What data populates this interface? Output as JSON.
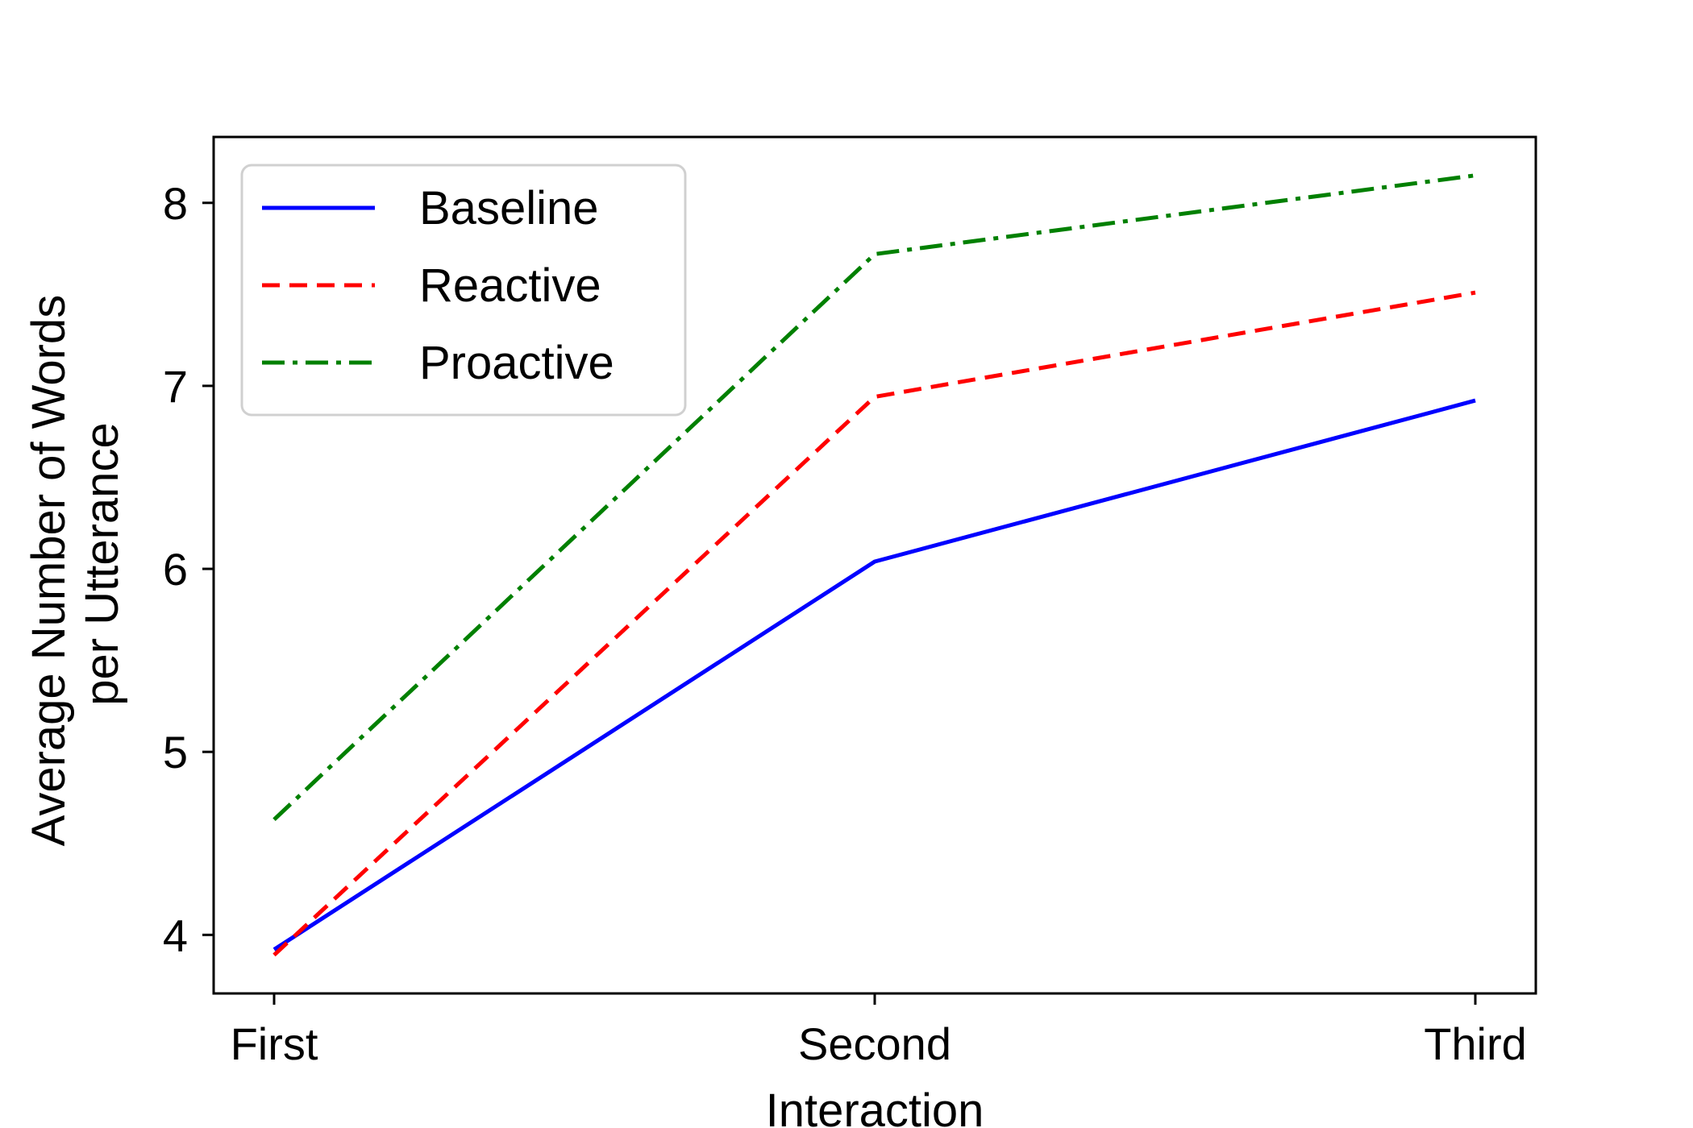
{
  "chart_data": {
    "type": "line",
    "categories": [
      "First",
      "Second",
      "Third"
    ],
    "series": [
      {
        "name": "Baseline",
        "values": [
          3.92,
          6.04,
          6.92
        ],
        "color": "#0000ff",
        "style": "solid"
      },
      {
        "name": "Reactive",
        "values": [
          3.89,
          6.94,
          7.51
        ],
        "color": "#ff0000",
        "style": "dashed"
      },
      {
        "name": "Proactive",
        "values": [
          4.63,
          7.72,
          8.15
        ],
        "color": "#008000",
        "style": "dashdot"
      }
    ],
    "title": "",
    "xlabel": "Interaction",
    "ylabel_line1": "Average Number of Words",
    "ylabel_line2": "per Utterance",
    "ylim": [
      3.68,
      8.36
    ],
    "yticks": [
      4,
      5,
      6,
      7,
      8
    ],
    "grid": false,
    "legend_position": "top-left"
  }
}
